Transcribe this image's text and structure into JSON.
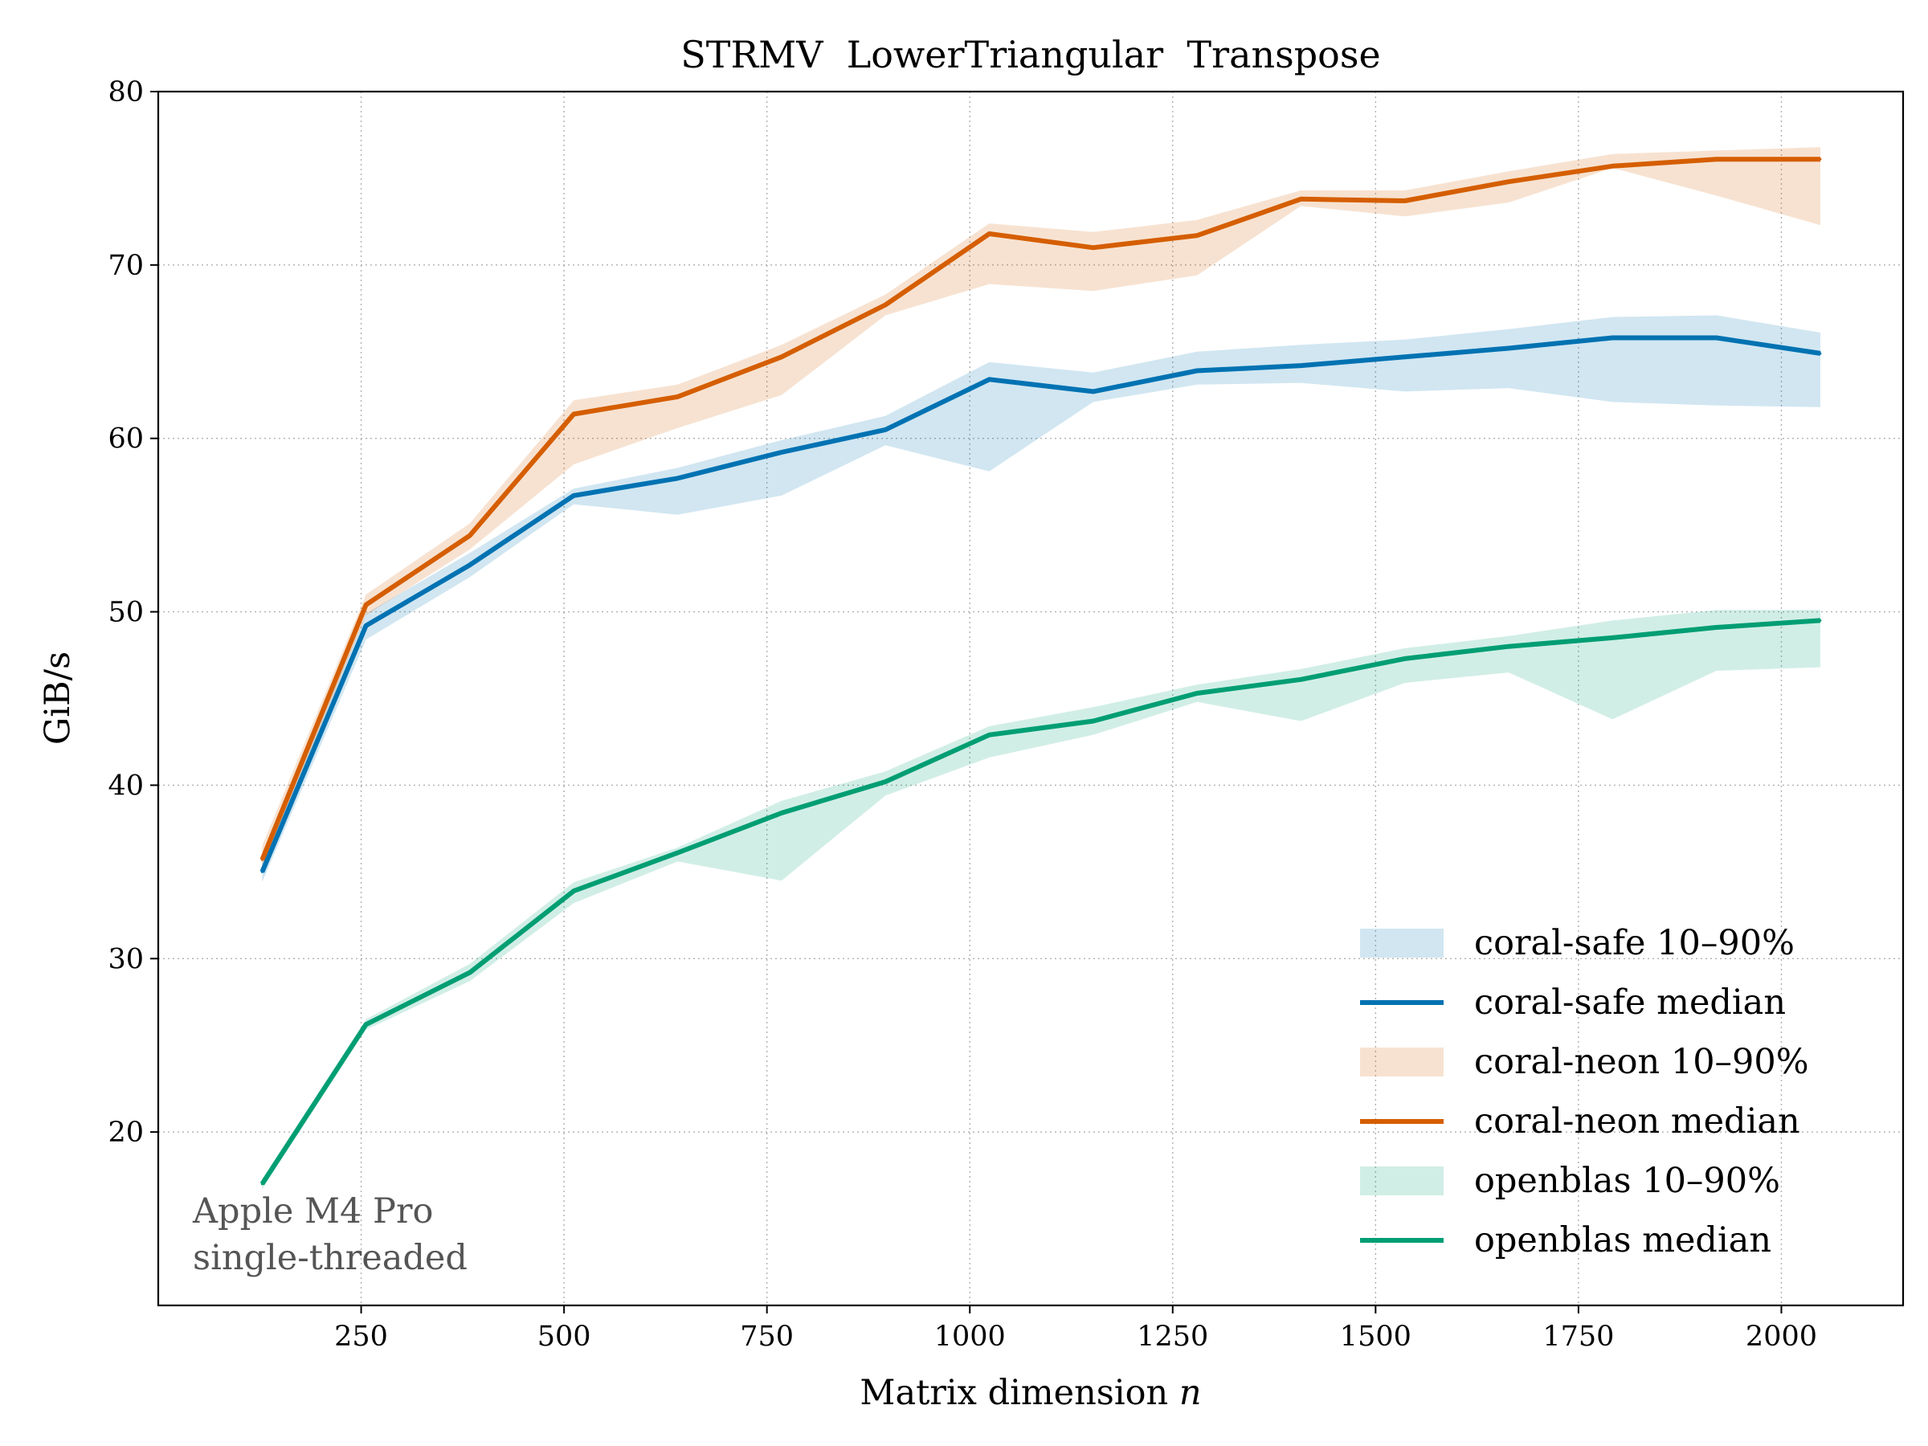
{
  "chart_data": {
    "type": "line",
    "title": "STRMV  LowerTriangular  Transpose",
    "xlabel": "Matrix dimension",
    "xlabel_var": "n",
    "ylabel": "GiB/s",
    "xlim": [
      0,
      2150
    ],
    "ylim": [
      10,
      80
    ],
    "xticks": [
      250,
      500,
      750,
      1000,
      1250,
      1500,
      1750,
      2000
    ],
    "yticks": [
      20,
      30,
      40,
      50,
      60,
      70,
      80
    ],
    "grid": true,
    "legend_position": "lower-right",
    "annotation": [
      "Apple M4 Pro",
      "single-threaded"
    ],
    "x": [
      128,
      256,
      384,
      512,
      640,
      768,
      896,
      1024,
      1152,
      1280,
      1408,
      1536,
      1664,
      1792,
      1920,
      2048
    ],
    "series": [
      {
        "name": "coral-safe",
        "color": "#0072b2",
        "band_label": "coral-safe 10–90%",
        "median_label": "coral-safe median",
        "median": [
          35.0,
          49.2,
          52.7,
          56.7,
          57.7,
          59.2,
          60.5,
          63.4,
          62.7,
          63.9,
          64.2,
          64.7,
          65.2,
          65.8,
          65.8,
          64.9
        ],
        "p10": [
          34.4,
          48.4,
          52.0,
          56.2,
          55.6,
          56.7,
          59.6,
          58.1,
          62.1,
          63.1,
          63.2,
          62.7,
          62.9,
          62.1,
          61.9,
          61.8
        ],
        "p90": [
          35.6,
          49.9,
          53.4,
          57.1,
          58.3,
          59.9,
          61.3,
          64.4,
          63.8,
          65.0,
          65.4,
          65.7,
          66.3,
          67.0,
          67.1,
          66.1
        ]
      },
      {
        "name": "coral-neon",
        "color": "#d55e00",
        "band_label": "coral-neon 10–90%",
        "median_label": "coral-neon median",
        "median": [
          35.7,
          50.4,
          54.4,
          61.4,
          62.4,
          64.7,
          67.7,
          71.8,
          71.0,
          71.7,
          73.8,
          73.7,
          74.8,
          75.7,
          76.1,
          76.1
        ],
        "p10": [
          35.1,
          49.8,
          53.6,
          58.5,
          60.6,
          62.5,
          67.1,
          68.9,
          68.5,
          69.4,
          73.4,
          72.8,
          73.6,
          75.6,
          74.0,
          72.3
        ],
        "p90": [
          36.5,
          51.0,
          55.1,
          62.2,
          63.1,
          65.4,
          68.3,
          72.4,
          71.9,
          72.6,
          74.3,
          74.3,
          75.4,
          76.4,
          76.6,
          76.8
        ]
      },
      {
        "name": "openblas",
        "color": "#009e73",
        "band_label": "openblas 10–90%",
        "median_label": "openblas median",
        "median": [
          17.0,
          26.2,
          29.2,
          33.9,
          36.1,
          38.4,
          40.2,
          42.9,
          43.7,
          45.3,
          46.1,
          47.3,
          48.0,
          48.5,
          49.1,
          49.5
        ],
        "p10": [
          16.7,
          25.9,
          28.7,
          33.2,
          35.6,
          34.5,
          39.4,
          41.6,
          42.9,
          44.8,
          43.7,
          45.9,
          46.5,
          43.8,
          46.6,
          46.8
        ],
        "p90": [
          17.3,
          26.5,
          29.7,
          34.4,
          36.4,
          39.1,
          40.8,
          43.4,
          44.5,
          45.8,
          46.7,
          47.9,
          48.6,
          49.5,
          50.1,
          50.1
        ]
      }
    ]
  }
}
